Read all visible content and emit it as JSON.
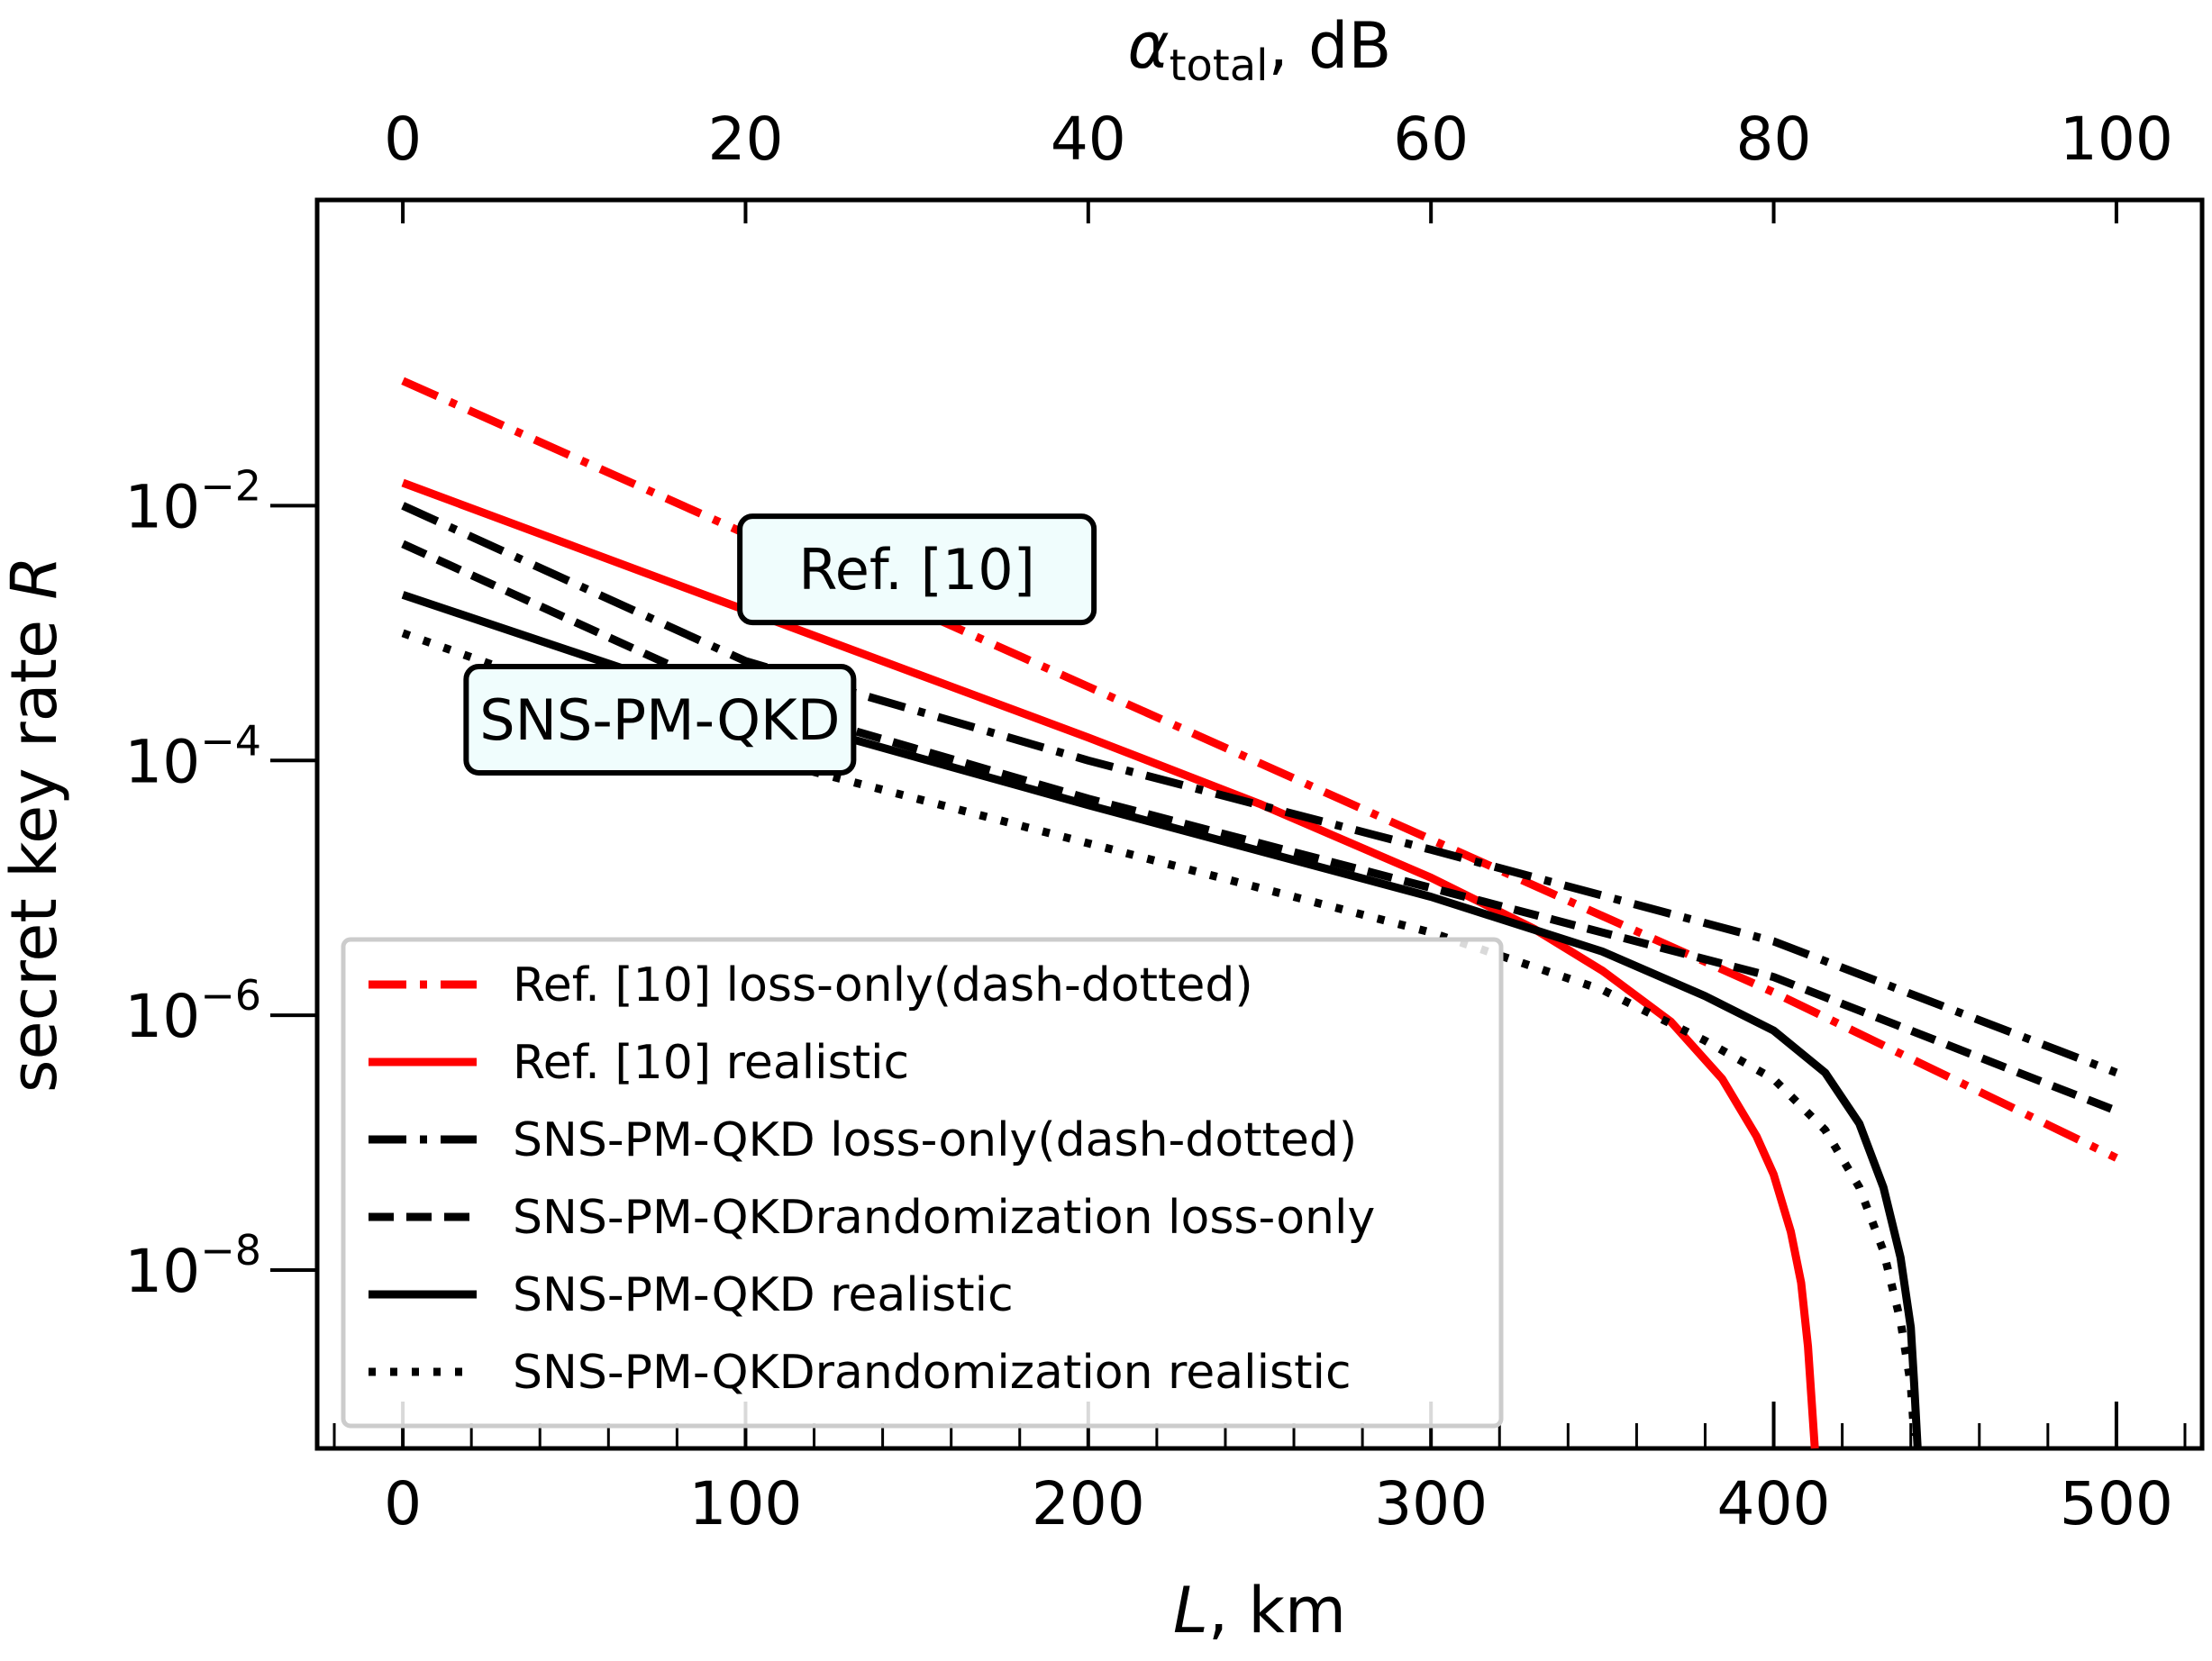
{
  "chart_data": {
    "type": "line",
    "x_scale": "linear",
    "y_scale": "log",
    "xlabel": {
      "italic": "L",
      "rest": ", km"
    },
    "ylabel": {
      "text": "secret key rate ",
      "italic": "R"
    },
    "top_label": {
      "symbol": "α",
      "sub": "total",
      "rest": ", dB"
    },
    "xlim": [
      -25,
      525
    ],
    "ylim_log10": [
      -9.4,
      0.4
    ],
    "x_ticks": [
      0,
      100,
      200,
      300,
      400,
      500
    ],
    "x_tick_labels": [
      "0",
      "100",
      "200",
      "300",
      "400",
      "500"
    ],
    "x_minor_step": 20,
    "top_ticks": [
      0,
      20,
      40,
      60,
      80,
      100
    ],
    "top_tick_labels": [
      "0",
      "20",
      "40",
      "60",
      "80",
      "100"
    ],
    "top_scale_dB_per_km": 0.2,
    "y_ticks_exp": [
      -2,
      -4,
      -6,
      -8
    ],
    "y_tick_labels": [
      {
        "base": "10",
        "exp": "−2"
      },
      {
        "base": "10",
        "exp": "−4"
      },
      {
        "base": "10",
        "exp": "−6"
      },
      {
        "base": "10",
        "exp": "−8"
      }
    ],
    "series": [
      {
        "name": "Ref. [10] loss-only(dash-dotted)",
        "color": "#ff0000",
        "style": "dashdot",
        "x": [
          0,
          100,
          200,
          300,
          400,
          500
        ],
        "log10_y": [
          -1.02,
          -2.22,
          -3.42,
          -4.62,
          -5.82,
          -7.12
        ]
      },
      {
        "name": "Ref. [10] realistic",
        "color": "#ff0000",
        "style": "solid",
        "x": [
          0,
          50,
          100,
          150,
          200,
          250,
          300,
          330,
          350,
          370,
          385,
          395,
          400,
          405,
          408,
          410,
          411,
          412,
          412
        ],
        "log10_y": [
          -1.82,
          -2.32,
          -2.82,
          -3.32,
          -3.82,
          -4.34,
          -4.92,
          -5.32,
          -5.65,
          -6.05,
          -6.5,
          -6.95,
          -7.25,
          -7.7,
          -8.1,
          -8.6,
          -9.0,
          -9.4,
          -9.4
        ]
      },
      {
        "name": "SNS-PM-QKD loss-only(dash-dotted)",
        "color": "#000000",
        "style": "dashdot",
        "x": [
          0,
          100,
          200,
          300,
          400,
          500
        ],
        "log10_y": [
          -2.0,
          -3.22,
          -4.0,
          -4.7,
          -5.42,
          -6.45
        ]
      },
      {
        "name": "SNS-PM-QKDrandomization loss-only",
        "color": "#000000",
        "style": "dashed",
        "x": [
          0,
          100,
          200,
          300,
          400,
          500
        ],
        "log10_y": [
          -2.3,
          -3.52,
          -4.3,
          -5.0,
          -5.7,
          -6.75
        ]
      },
      {
        "name": "SNS-PM-QKD realistic",
        "color": "#000000",
        "style": "solid",
        "x": [
          0,
          100,
          200,
          300,
          350,
          380,
          400,
          415,
          425,
          432,
          437,
          440,
          441,
          442,
          442
        ],
        "log10_y": [
          -2.7,
          -3.6,
          -4.35,
          -5.07,
          -5.5,
          -5.85,
          -6.12,
          -6.45,
          -6.85,
          -7.35,
          -7.9,
          -8.45,
          -8.9,
          -9.4,
          -9.4
        ]
      },
      {
        "name": "SNS-PM-QKDrandomization realistic",
        "color": "#000000",
        "style": "dotted",
        "x": [
          0,
          100,
          200,
          300,
          350,
          380,
          400,
          415,
          425,
          432,
          437,
          440,
          441
        ],
        "log10_y": [
          -3.0,
          -3.95,
          -4.65,
          -5.35,
          -5.8,
          -6.2,
          -6.5,
          -6.9,
          -7.35,
          -7.85,
          -8.4,
          -8.9,
          -9.3
        ]
      }
    ],
    "annotations": [
      {
        "text": "Ref. [10]",
        "x": 150,
        "log10_y": -2.5,
        "bg": "#f0fdfd"
      },
      {
        "text": "SNS-PM-QKD",
        "x": 75,
        "log10_y": -3.68,
        "bg": "#f0fdfd"
      }
    ],
    "legend": {
      "position": "lower-left"
    }
  }
}
